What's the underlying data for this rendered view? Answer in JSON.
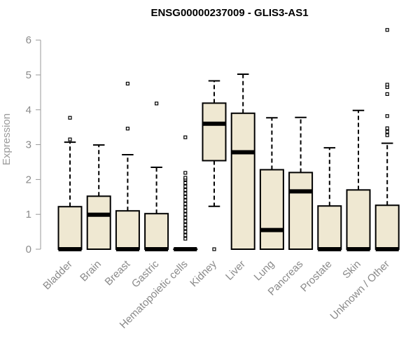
{
  "chart_data": {
    "type": "boxplot",
    "title": "ENSG00000237009 - GLIS3-AS1",
    "xlabel": "",
    "ylabel": "Expression",
    "ylim": [
      0,
      6
    ],
    "yticks": [
      0,
      1,
      2,
      3,
      4,
      5,
      6
    ],
    "grid": false,
    "legend": "none",
    "colors": {
      "box_fill": "#efe8d2",
      "stroke": "#000000",
      "axis": "#9a9a9a"
    },
    "categories": [
      "Bladder",
      "Brain",
      "Breast",
      "Gastric",
      "Hematopoietic cells",
      "Kidney",
      "Liver",
      "Lung",
      "Pancreas",
      "Prostate",
      "Skin",
      "Unknown / Other"
    ],
    "boxes": [
      {
        "category": "Bladder",
        "whisker_low": 0,
        "q1": 0,
        "median": 0,
        "q3": 1.22,
        "whisker_high": 3.07,
        "outliers": [
          3.15,
          3.77
        ]
      },
      {
        "category": "Brain",
        "whisker_low": 0,
        "q1": 0,
        "median": 0.99,
        "q3": 1.52,
        "whisker_high": 2.99,
        "outliers": []
      },
      {
        "category": "Breast",
        "whisker_low": 0,
        "q1": 0,
        "median": 0,
        "q3": 1.1,
        "whisker_high": 2.71,
        "outliers": [
          3.46,
          4.75
        ]
      },
      {
        "category": "Gastric",
        "whisker_low": 0,
        "q1": 0,
        "median": 0,
        "q3": 1.02,
        "whisker_high": 2.35,
        "outliers": [
          4.18
        ]
      },
      {
        "category": "Hematopoietic cells",
        "whisker_low": 0,
        "q1": 0,
        "median": 0,
        "q3": 0,
        "whisker_high": 0,
        "outliers": [
          0.3,
          0.4,
          0.5,
          0.6,
          0.7,
          0.8,
          0.9,
          1.0,
          1.1,
          1.2,
          1.3,
          1.4,
          1.5,
          1.6,
          1.7,
          1.8,
          1.9,
          2.0,
          2.05,
          2.19,
          3.21
        ]
      },
      {
        "category": "Kidney",
        "whisker_low": 1.23,
        "q1": 2.54,
        "median": 3.6,
        "q3": 4.19,
        "whisker_high": 4.83,
        "outliers": [
          0
        ]
      },
      {
        "category": "Liver",
        "whisker_low": 0,
        "q1": 0,
        "median": 2.78,
        "q3": 3.9,
        "whisker_high": 5.02,
        "outliers": []
      },
      {
        "category": "Lung",
        "whisker_low": 0,
        "q1": 0,
        "median": 0.55,
        "q3": 2.28,
        "whisker_high": 3.77,
        "outliers": []
      },
      {
        "category": "Pancreas",
        "whisker_low": 0,
        "q1": 0,
        "median": 1.66,
        "q3": 2.2,
        "whisker_high": 3.78,
        "outliers": []
      },
      {
        "category": "Prostate",
        "whisker_low": 0,
        "q1": 0,
        "median": 0,
        "q3": 1.24,
        "whisker_high": 2.91,
        "outliers": []
      },
      {
        "category": "Skin",
        "whisker_low": 0,
        "q1": 0,
        "median": 0,
        "q3": 1.7,
        "whisker_high": 3.98,
        "outliers": []
      },
      {
        "category": "Unknown / Other",
        "whisker_low": 0,
        "q1": 0,
        "median": 0,
        "q3": 1.26,
        "whisker_high": 3.04,
        "outliers": [
          3.27,
          3.37,
          3.47,
          3.82,
          4.45,
          4.65,
          4.72,
          6.29
        ]
      }
    ]
  }
}
